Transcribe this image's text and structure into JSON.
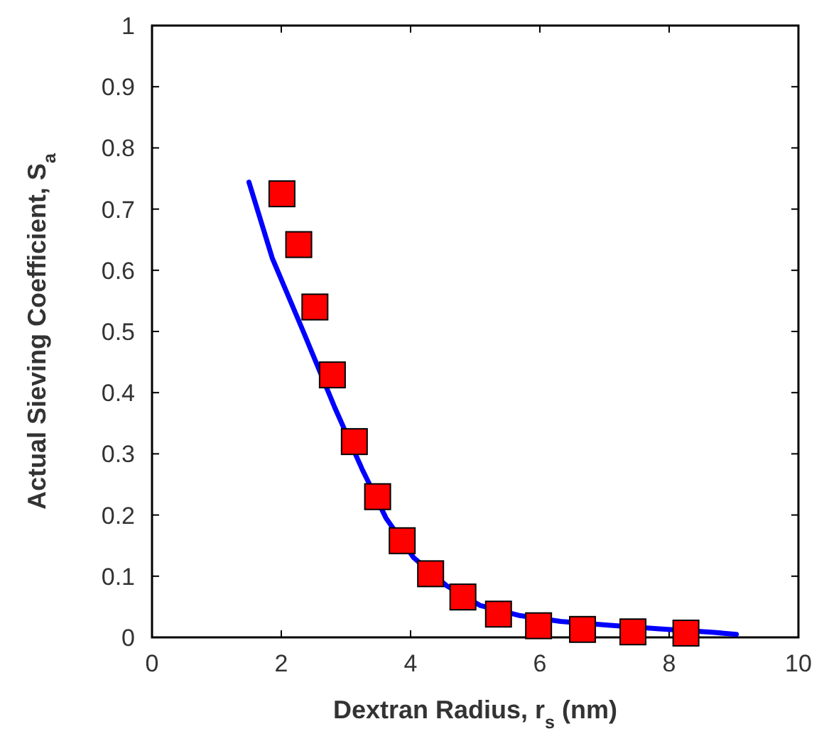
{
  "chart_data": {
    "type": "scatter",
    "xlabel": "Dextran Radius, r$_{s}$ (nm)",
    "ylabel": "Actual Sieving Coefficient, S$_{a}$",
    "xlim": [
      0,
      10
    ],
    "xticks": [
      0,
      2,
      4,
      6,
      8,
      10
    ],
    "ylim": [
      0,
      1
    ],
    "yticks": [
      0,
      0.1,
      0.2,
      0.3,
      0.4,
      0.5,
      0.6,
      0.7,
      0.8,
      0.9,
      1
    ],
    "grid": false,
    "series": [
      {
        "type": "line",
        "color": "#0000ff",
        "marker": "none",
        "line_style": "solid",
        "x": [
          1.5,
          1.86,
          2.34,
          2.83,
          3.25,
          3.62,
          4.05,
          4.55,
          5.08,
          5.67,
          6.32,
          7.05,
          7.85,
          8.7,
          9.04
        ],
        "values": [
          0.744,
          0.62,
          0.5,
          0.375,
          0.275,
          0.195,
          0.13,
          0.085,
          0.052,
          0.036,
          0.026,
          0.02,
          0.014,
          0.008,
          0.005
        ]
      },
      {
        "color": "#ff0000",
        "marker": "square",
        "x": [
          2.01,
          2.27,
          2.52,
          2.79,
          3.13,
          3.49,
          3.87,
          4.31,
          4.81,
          5.36,
          5.98,
          6.66,
          7.44,
          8.26
        ],
        "values": [
          0.725,
          0.642,
          0.54,
          0.429,
          0.32,
          0.23,
          0.158,
          0.104,
          0.066,
          0.038,
          0.019,
          0.013,
          0.009,
          0.007
        ]
      }
    ]
  }
}
